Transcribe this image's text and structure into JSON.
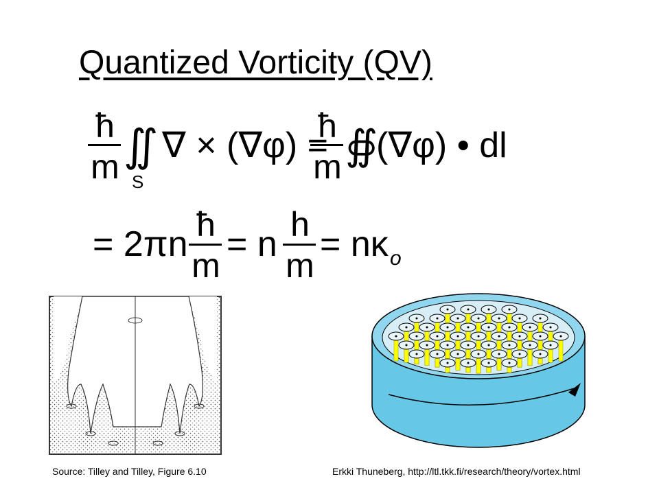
{
  "slide": {
    "title": "Quantized Vorticity (QV)",
    "equation1": {
      "hbar1": "ħ",
      "m1": "m",
      "double_integral": "∬",
      "surface": "S",
      "curl": "∇ × (∇φ) =",
      "hbar2": "ħ",
      "m2": "m",
      "contour_integral": "∯",
      "line_term": "(∇φ) • dl"
    },
    "equation2": {
      "lead": "= 2πn",
      "hbar": "ħ",
      "m1": "m",
      "eq_n": "= n",
      "h": "h",
      "m2": "m",
      "eq_kappa": "= nκ",
      "sub": "o"
    },
    "source_left": "Source:  Tilley and Tilley, Figure 6.10",
    "source_right": "Erkki Thuneberg, http://ltl.tkk.fi/research/theory/vortex.html"
  }
}
